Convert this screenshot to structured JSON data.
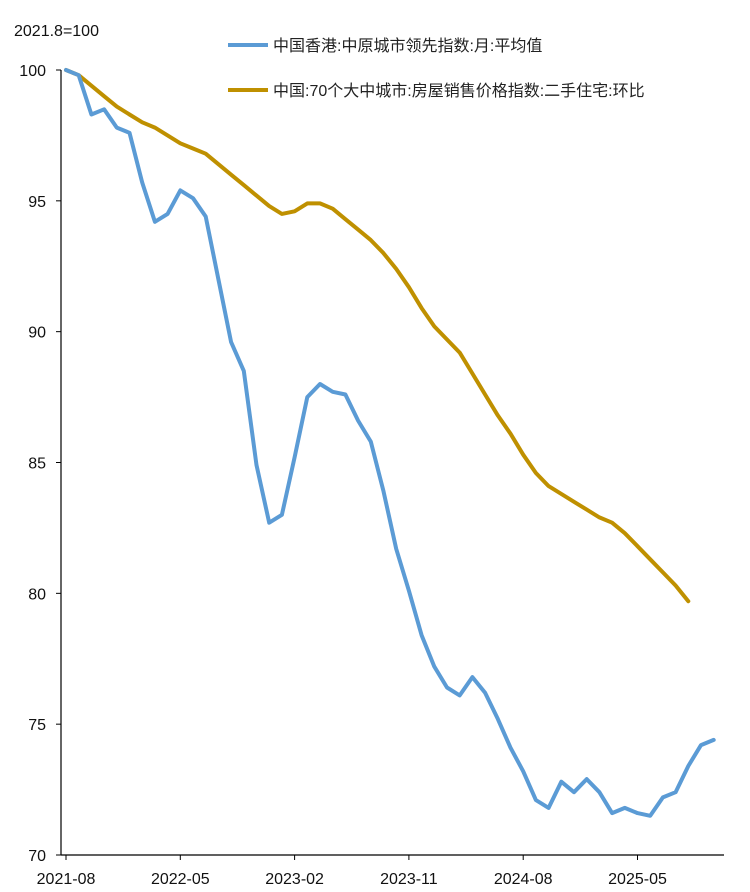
{
  "chart_data": {
    "type": "line",
    "unit_label": "2021.8=100",
    "x_tick_labels": [
      "2021-08",
      "2022-05",
      "2023-02",
      "2023-11",
      "2024-08",
      "2025-05"
    ],
    "y_ticks": [
      70,
      75,
      80,
      85,
      90,
      95,
      100
    ],
    "ylim": [
      70,
      100
    ],
    "grid": false,
    "legend_position": "top",
    "series": [
      {
        "name": "中国香港:中原城市领先指数:月:平均值",
        "color": "#5b9bd5",
        "values": [
          100.0,
          99.8,
          98.3,
          98.5,
          97.8,
          97.6,
          95.7,
          94.2,
          94.5,
          95.4,
          95.1,
          94.4,
          92.0,
          89.6,
          88.5,
          84.9,
          82.7,
          83.0,
          85.2,
          87.5,
          88.0,
          87.7,
          87.6,
          86.6,
          85.8,
          83.9,
          81.7,
          80.1,
          78.4,
          77.2,
          76.4,
          76.1,
          76.8,
          76.2,
          75.2,
          74.1,
          73.2,
          72.1,
          71.8,
          72.8,
          72.4,
          72.9,
          72.4,
          71.6,
          71.8,
          71.6,
          71.5,
          72.2,
          72.4,
          73.4,
          74.2,
          74.4
        ]
      },
      {
        "name": "中国:70个大中城市:房屋销售价格指数:二手住宅:环比",
        "color": "#bf9000",
        "values": [
          100.0,
          99.8,
          99.4,
          99.0,
          98.6,
          98.3,
          98.0,
          97.8,
          97.5,
          97.2,
          97.0,
          96.8,
          96.4,
          96.0,
          95.6,
          95.2,
          94.8,
          94.5,
          94.6,
          94.9,
          94.9,
          94.7,
          94.3,
          93.9,
          93.5,
          93.0,
          92.4,
          91.7,
          90.9,
          90.2,
          89.7,
          89.2,
          88.4,
          87.6,
          86.8,
          86.1,
          85.3,
          84.6,
          84.1,
          83.8,
          83.5,
          83.2,
          82.9,
          82.7,
          82.3,
          81.8,
          81.3,
          80.8,
          80.3,
          79.7
        ]
      }
    ]
  }
}
